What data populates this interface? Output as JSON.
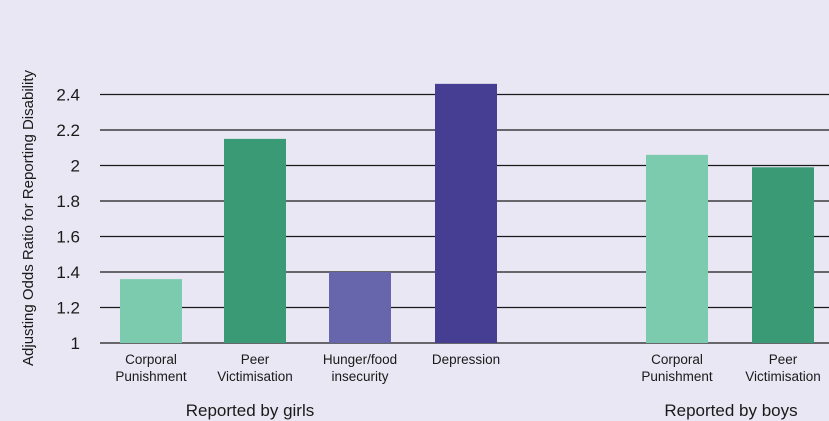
{
  "chart_data": {
    "type": "bar",
    "ylabel": "Adjusting Odds Ratio for Reporting Disability",
    "ylim": [
      1,
      2.5
    ],
    "yticks": [
      1,
      1.2,
      1.4,
      1.6,
      1.8,
      2,
      2.2,
      2.4
    ],
    "ytick_labels": [
      "1",
      "1.2",
      "1.4",
      "1.6",
      "1.8",
      "2",
      "2.2",
      "2.4"
    ],
    "groups": [
      {
        "label": "Reported by girls",
        "bars": [
          {
            "label_lines": [
              "Corporal",
              "Punishment"
            ],
            "value": 1.36,
            "color": "#7dcbae"
          },
          {
            "label_lines": [
              "Peer",
              "Victimisation"
            ],
            "value": 2.15,
            "color": "#3a9a76"
          },
          {
            "label_lines": [
              "Hunger/food",
              "insecurity"
            ],
            "value": 1.4,
            "color": "#6766ad"
          },
          {
            "label_lines": [
              "Depression"
            ],
            "value": 2.46,
            "color": "#463e93"
          }
        ]
      },
      {
        "label": "Reported by boys",
        "bars": [
          {
            "label_lines": [
              "Corporal",
              "Punishment"
            ],
            "value": 2.06,
            "color": "#7dcbae"
          },
          {
            "label_lines": [
              "Peer",
              "Victimisation"
            ],
            "value": 1.99,
            "color": "#3a9a76"
          }
        ]
      }
    ]
  }
}
